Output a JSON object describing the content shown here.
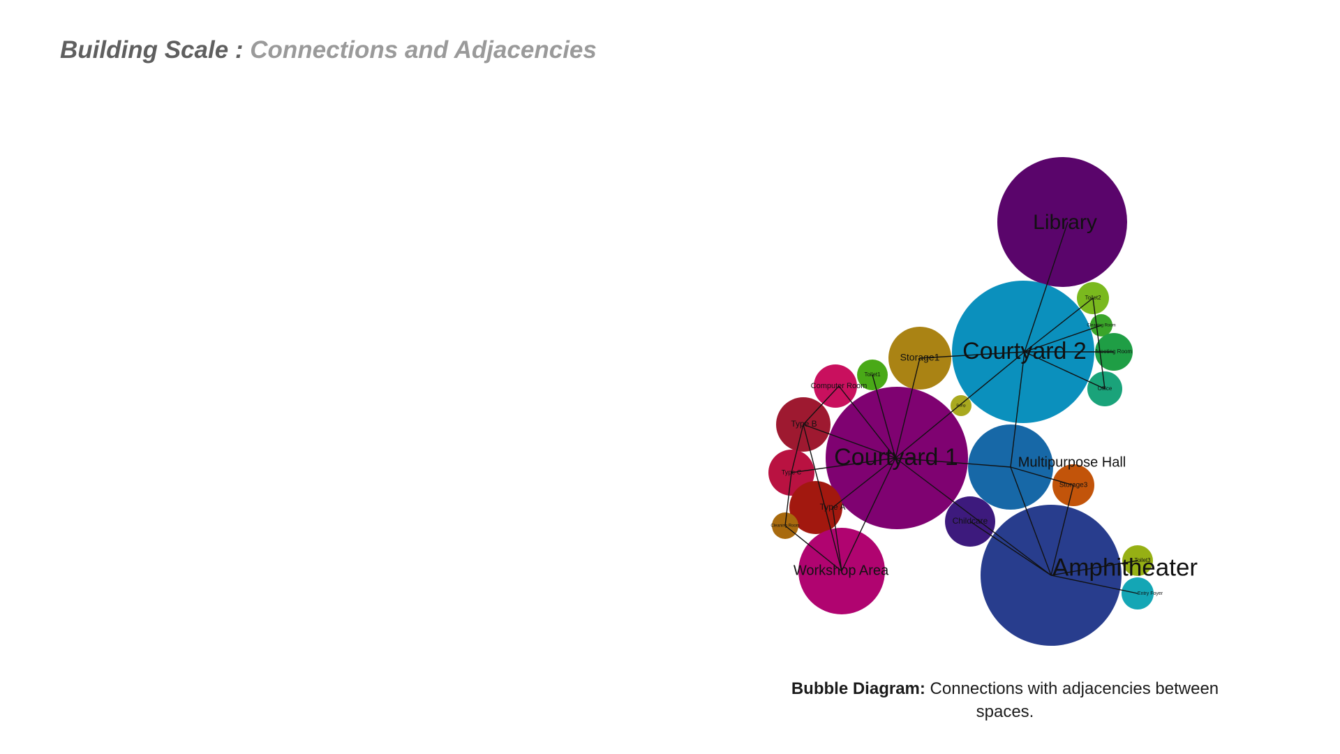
{
  "header": {
    "title_main": "Building Scale : ",
    "title_sub": "Connections and Adjacencies"
  },
  "caption": {
    "label": "Bubble Diagram:",
    "text": " Connections with adjacencies between spaces."
  },
  "diagram": {
    "nodes": [
      {
        "id": "library",
        "label": "Library",
        "color": "#5a056b"
      },
      {
        "id": "courtyard2",
        "label": "Courtyard 2",
        "color": "#0b90bd"
      },
      {
        "id": "toilet2",
        "label": "Toilet2",
        "color": "#7ab91e"
      },
      {
        "id": "cleaning_room_2",
        "label": "Cleaning Room",
        "color": "#3aa52a"
      },
      {
        "id": "meeting_room",
        "label": "Meeting Room",
        "color": "#1f9e45"
      },
      {
        "id": "office",
        "label": "Office",
        "color": "#1aa37a"
      },
      {
        "id": "storage1",
        "label": "Storage1",
        "color": "#aa8314"
      },
      {
        "id": "toilet1",
        "label": "Toilet1",
        "color": "#49a917"
      },
      {
        "id": "computer_room",
        "label": "Computer Room",
        "color": "#c9105e"
      },
      {
        "id": "ramp",
        "label": "Ramp",
        "color": "#a9a91f"
      },
      {
        "id": "type_b",
        "label": "Type B",
        "color": "#9e1930"
      },
      {
        "id": "courtyard1",
        "label": "Courtyard 1",
        "color": "#7f0271"
      },
      {
        "id": "type_c",
        "label": "Type C",
        "color": "#b91241"
      },
      {
        "id": "type_a",
        "label": "Type A",
        "color": "#a2180f"
      },
      {
        "id": "cleaning_room_1",
        "label": "Cleaning Room",
        "color": "#a86a0e"
      },
      {
        "id": "workshop_area",
        "label": "Workshop Area",
        "color": "#b00470"
      },
      {
        "id": "multipurpose_hall",
        "label": "Multipurpose Hall",
        "color": "#1768a7"
      },
      {
        "id": "storage3",
        "label": "Storage3",
        "color": "#c2540a"
      },
      {
        "id": "childcare",
        "label": "Childcare",
        "color": "#3d1a7d"
      },
      {
        "id": "amphitheater",
        "label": "Amphitheater",
        "color": "#283d8d"
      },
      {
        "id": "toilet3",
        "label": "Toilet3",
        "color": "#96b014"
      },
      {
        "id": "entry_foyer",
        "label": "Entry Foyer",
        "color": "#14a6b5"
      }
    ],
    "edges": [
      [
        "library",
        "courtyard2"
      ],
      [
        "courtyard2",
        "toilet2"
      ],
      [
        "courtyard2",
        "cleaning_room_2"
      ],
      [
        "courtyard2",
        "meeting_room"
      ],
      [
        "courtyard2",
        "office"
      ],
      [
        "courtyard2",
        "storage1"
      ],
      [
        "courtyard2",
        "courtyard1"
      ],
      [
        "courtyard2",
        "multipurpose_hall"
      ],
      [
        "toilet2",
        "office"
      ],
      [
        "courtyard1",
        "storage1"
      ],
      [
        "courtyard1",
        "toilet1"
      ],
      [
        "courtyard1",
        "computer_room"
      ],
      [
        "courtyard1",
        "type_b"
      ],
      [
        "courtyard1",
        "type_c"
      ],
      [
        "courtyard1",
        "type_a"
      ],
      [
        "courtyard1",
        "workshop_area"
      ],
      [
        "courtyard1",
        "multipurpose_hall"
      ],
      [
        "courtyard1",
        "amphitheater"
      ],
      [
        "computer_room",
        "type_b"
      ],
      [
        "type_b",
        "type_c"
      ],
      [
        "type_c",
        "cleaning_room_1"
      ],
      [
        "cleaning_room_1",
        "workshop_area"
      ],
      [
        "type_b",
        "workshop_area"
      ],
      [
        "type_a",
        "workshop_area"
      ],
      [
        "multipurpose_hall",
        "storage3"
      ],
      [
        "multipurpose_hall",
        "amphitheater"
      ],
      [
        "storage3",
        "amphitheater"
      ],
      [
        "childcare",
        "amphitheater"
      ],
      [
        "amphitheater",
        "toilet3"
      ],
      [
        "amphitheater",
        "entry_foyer"
      ]
    ]
  }
}
